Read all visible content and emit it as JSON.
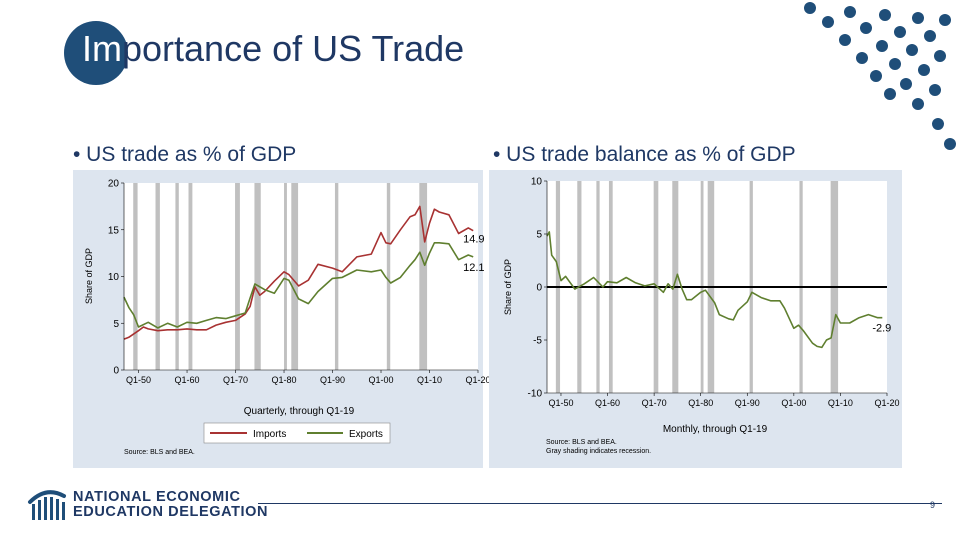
{
  "slide": {
    "title_highlight": "Im",
    "title_rest": "portance of US Trade",
    "bullet_left": "• US trade as % of GDP",
    "bullet_right": "• US trade balance as % of GDP",
    "page_number": "9",
    "logo_line1": "NATIONAL ECONOMIC",
    "logo_line2": "EDUCATION DELEGATION",
    "colors": {
      "navy": "#1f4e79",
      "title_text": "#1f3864",
      "dots": "#1f4e79",
      "panel": "#dde5ef"
    },
    "icons": [
      "dot-pattern-icon",
      "bar-chart-logo-icon"
    ]
  },
  "chart_data": [
    {
      "type": "line",
      "xlabel": "Quarterly, through Q1-19",
      "ylabel": "Share of GDP",
      "xlim": [
        1947,
        2020
      ],
      "ylim": [
        0,
        20
      ],
      "x_ticks": [
        "Q1-50",
        "Q1-60",
        "Q1-70",
        "Q1-80",
        "Q1-90",
        "Q1-00",
        "Q1-10",
        "Q1-20"
      ],
      "y_ticks": [
        "0",
        "5",
        "10",
        "15",
        "20"
      ],
      "legend": "bottom",
      "source": "Source: BLS and BEA.",
      "recessions": [
        [
          1948.9,
          1949.8
        ],
        [
          1953.5,
          1954.4
        ],
        [
          1957.6,
          1958.3
        ],
        [
          1960.3,
          1961.1
        ],
        [
          1969.9,
          1970.9
        ],
        [
          1973.9,
          1975.2
        ],
        [
          1980.0,
          1980.6
        ],
        [
          1981.5,
          1982.9
        ],
        [
          1990.5,
          1991.2
        ],
        [
          2001.2,
          2001.9
        ],
        [
          2007.9,
          2009.5
        ]
      ],
      "series": [
        {
          "name": "Imports",
          "color": "#a83232",
          "end_label": "14.9",
          "x": [
            1947,
            1948,
            1950,
            1951,
            1952,
            1954,
            1956,
            1958,
            1960,
            1962,
            1964,
            1966,
            1968,
            1970,
            1972,
            1973,
            1974,
            1975,
            1976,
            1978,
            1980,
            1981,
            1983,
            1985,
            1987,
            1990,
            1992,
            1995,
            1998,
            2000,
            2001,
            2002,
            2004,
            2006,
            2007,
            2008,
            2009,
            2010,
            2011,
            2012,
            2014,
            2016,
            2018,
            2019
          ],
          "values": [
            3.3,
            3.5,
            4.2,
            4.6,
            4.4,
            4.2,
            4.3,
            4.3,
            4.4,
            4.3,
            4.3,
            4.8,
            5.1,
            5.3,
            6.0,
            6.8,
            8.9,
            8.0,
            8.4,
            9.5,
            10.5,
            10.2,
            9.0,
            9.6,
            11.3,
            10.9,
            10.5,
            12.1,
            12.4,
            14.7,
            13.6,
            13.5,
            15.0,
            16.4,
            16.6,
            17.5,
            13.7,
            15.7,
            17.2,
            16.9,
            16.6,
            14.6,
            15.2,
            14.9
          ]
        },
        {
          "name": "Exports",
          "color": "#5f7f2f",
          "end_label": "12.1",
          "x": [
            1947,
            1948,
            1949,
            1950,
            1952,
            1954,
            1956,
            1958,
            1960,
            1962,
            1964,
            1966,
            1968,
            1970,
            1972,
            1973,
            1974,
            1976,
            1978,
            1980,
            1981,
            1983,
            1985,
            1987,
            1990,
            1992,
            1995,
            1998,
            2000,
            2001,
            2002,
            2004,
            2006,
            2007,
            2008,
            2009,
            2010,
            2011,
            2012,
            2014,
            2016,
            2018,
            2019
          ],
          "values": [
            7.8,
            6.7,
            5.9,
            4.6,
            5.1,
            4.5,
            5.0,
            4.6,
            5.1,
            5.0,
            5.3,
            5.6,
            5.5,
            5.8,
            6.1,
            7.7,
            9.2,
            8.6,
            8.2,
            9.8,
            9.6,
            7.6,
            7.1,
            8.4,
            9.8,
            9.9,
            10.7,
            10.5,
            10.7,
            9.9,
            9.3,
            9.9,
            11.2,
            11.8,
            12.6,
            11.2,
            12.5,
            13.6,
            13.6,
            13.5,
            11.8,
            12.3,
            12.1
          ]
        }
      ]
    },
    {
      "type": "line",
      "xlabel": "Monthly, through Q1-19",
      "ylabel": "Share of GDP",
      "xlim": [
        1947,
        2020
      ],
      "ylim": [
        -10,
        10
      ],
      "x_ticks": [
        "Q1-50",
        "Q1-60",
        "Q1-70",
        "Q1-80",
        "Q1-90",
        "Q1-00",
        "Q1-10",
        "Q1-20"
      ],
      "y_ticks": [
        "-10",
        "-5",
        "0",
        "5",
        "10"
      ],
      "zero_line": true,
      "source": "Source: BLS and BEA.",
      "note": "Gray shading indicates recession.",
      "recessions": [
        [
          1948.9,
          1949.8
        ],
        [
          1953.5,
          1954.4
        ],
        [
          1957.6,
          1958.3
        ],
        [
          1960.3,
          1961.1
        ],
        [
          1969.9,
          1970.9
        ],
        [
          1973.9,
          1975.2
        ],
        [
          1980.0,
          1980.6
        ],
        [
          1981.5,
          1982.9
        ],
        [
          1990.5,
          1991.2
        ],
        [
          2001.2,
          2001.9
        ],
        [
          2007.9,
          2009.5
        ]
      ],
      "series": [
        {
          "name": "Trade balance",
          "color": "#5f7f2f",
          "end_label": "-2.9",
          "x": [
            1947,
            1947.5,
            1948,
            1949,
            1950,
            1951,
            1952,
            1953,
            1955,
            1957,
            1959,
            1960,
            1962,
            1964,
            1966,
            1968,
            1970,
            1972,
            1973,
            1974,
            1975,
            1976,
            1977,
            1978,
            1980,
            1981,
            1983,
            1984,
            1986,
            1987,
            1988,
            1990,
            1991,
            1993,
            1995,
            1997,
            1998,
            2000,
            2001,
            2002,
            2004,
            2005,
            2006,
            2007,
            2008,
            2009,
            2010,
            2012,
            2014,
            2016,
            2018,
            2019
          ],
          "values": [
            4.8,
            5.2,
            3.0,
            2.4,
            0.6,
            1.0,
            0.4,
            -0.2,
            0.3,
            0.9,
            0.0,
            0.5,
            0.4,
            0.9,
            0.4,
            0.1,
            0.3,
            -0.5,
            0.3,
            -0.2,
            1.2,
            -0.2,
            -1.2,
            -1.2,
            -0.5,
            -0.3,
            -1.5,
            -2.6,
            -3.0,
            -3.1,
            -2.2,
            -1.4,
            -0.5,
            -1.0,
            -1.3,
            -1.3,
            -2.0,
            -3.9,
            -3.6,
            -4.1,
            -5.3,
            -5.6,
            -5.7,
            -5.0,
            -4.8,
            -2.6,
            -3.4,
            -3.4,
            -2.9,
            -2.6,
            -2.9,
            -2.9
          ]
        }
      ]
    }
  ]
}
